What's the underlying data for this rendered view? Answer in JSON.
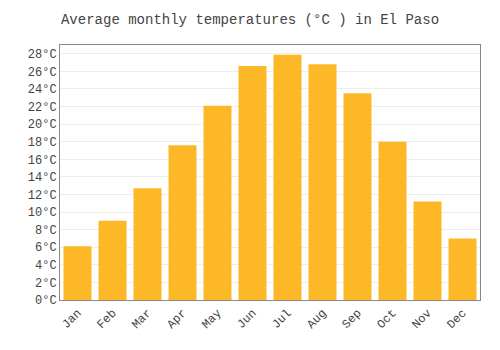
{
  "chart_data": {
    "type": "bar",
    "title": "Average monthly temperatures (°C ) in El Paso",
    "categories": [
      "Jan",
      "Feb",
      "Mar",
      "Apr",
      "May",
      "Jun",
      "Jul",
      "Aug",
      "Sep",
      "Oct",
      "Nov",
      "Dec"
    ],
    "values": [
      6.1,
      9.0,
      12.7,
      17.6,
      22.1,
      26.6,
      27.9,
      26.8,
      23.5,
      18.0,
      11.2,
      7.0
    ],
    "color": "#FDB827",
    "ylim": [
      0,
      29
    ],
    "yticks": [
      {
        "value": 0,
        "label": "0°C"
      },
      {
        "value": 2,
        "label": "2°C"
      },
      {
        "value": 4,
        "label": "4°C"
      },
      {
        "value": 6,
        "label": "6°C"
      },
      {
        "value": 8,
        "label": "8°C"
      },
      {
        "value": 10,
        "label": "10°C"
      },
      {
        "value": 12,
        "label": "12°C"
      },
      {
        "value": 14,
        "label": "14°C"
      },
      {
        "value": 16,
        "label": "16°C"
      },
      {
        "value": 18,
        "label": "18°C"
      },
      {
        "value": 20,
        "label": "20°C"
      },
      {
        "value": 22,
        "label": "22°C"
      },
      {
        "value": 24,
        "label": "24°C"
      },
      {
        "value": 26,
        "label": "26°C"
      },
      {
        "value": 28,
        "label": "28°C"
      }
    ],
    "grid": true
  }
}
